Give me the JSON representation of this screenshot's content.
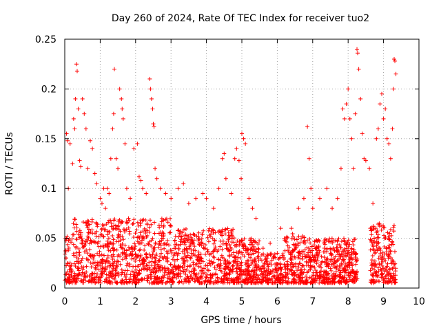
{
  "chart_data": {
    "type": "scatter",
    "title": "Day 260 of 2024, Rate Of TEC Index for receiver tuo2",
    "xlabel": "GPS time / hours",
    "ylabel": "ROTI / TECUs",
    "xlim": [
      0,
      10
    ],
    "ylim": [
      0,
      0.25
    ],
    "x_ticks": [
      0,
      1,
      2,
      3,
      4,
      5,
      6,
      7,
      8,
      9,
      10
    ],
    "x_tick_labels": [
      "0",
      "1",
      "2",
      "3",
      "4",
      "5",
      "6",
      "7",
      "8",
      "9",
      "10"
    ],
    "y_ticks": [
      0,
      0.05,
      0.1,
      0.15,
      0.2,
      0.25
    ],
    "y_tick_labels": [
      "0",
      "0.05",
      "0.1",
      "0.15",
      "0.2",
      "0.25"
    ],
    "grid": true,
    "marker": "+",
    "color": "#ff0000",
    "series": [
      {
        "name": "ROTI",
        "points": [
          [
            0.05,
            0.155
          ],
          [
            0.08,
            0.148
          ],
          [
            0.1,
            0.1
          ],
          [
            0.15,
            0.145
          ],
          [
            0.22,
            0.125
          ],
          [
            0.25,
            0.17
          ],
          [
            0.28,
            0.16
          ],
          [
            0.3,
            0.19
          ],
          [
            0.33,
            0.225
          ],
          [
            0.35,
            0.218
          ],
          [
            0.38,
            0.18
          ],
          [
            0.42,
            0.128
          ],
          [
            0.45,
            0.122
          ],
          [
            0.5,
            0.19
          ],
          [
            0.55,
            0.175
          ],
          [
            0.6,
            0.16
          ],
          [
            0.65,
            0.12
          ],
          [
            0.72,
            0.148
          ],
          [
            0.78,
            0.14
          ],
          [
            0.85,
            0.115
          ],
          [
            0.9,
            0.105
          ],
          [
            1.0,
            0.09
          ],
          [
            1.05,
            0.085
          ],
          [
            1.1,
            0.1
          ],
          [
            1.15,
            0.08
          ],
          [
            1.2,
            0.1
          ],
          [
            1.25,
            0.095
          ],
          [
            1.3,
            0.13
          ],
          [
            1.35,
            0.16
          ],
          [
            1.38,
            0.175
          ],
          [
            1.4,
            0.22
          ],
          [
            1.45,
            0.13
          ],
          [
            1.5,
            0.12
          ],
          [
            1.55,
            0.2
          ],
          [
            1.6,
            0.19
          ],
          [
            1.62,
            0.18
          ],
          [
            1.65,
            0.17
          ],
          [
            1.7,
            0.145
          ],
          [
            1.75,
            0.1
          ],
          [
            1.85,
            0.09
          ],
          [
            1.95,
            0.14
          ],
          [
            2.05,
            0.145
          ],
          [
            2.1,
            0.112
          ],
          [
            2.15,
            0.108
          ],
          [
            2.2,
            0.1
          ],
          [
            2.3,
            0.095
          ],
          [
            2.4,
            0.21
          ],
          [
            2.42,
            0.2
          ],
          [
            2.45,
            0.19
          ],
          [
            2.48,
            0.18
          ],
          [
            2.5,
            0.165
          ],
          [
            2.52,
            0.162
          ],
          [
            2.55,
            0.12
          ],
          [
            2.6,
            0.11
          ],
          [
            2.7,
            0.1
          ],
          [
            2.85,
            0.095
          ],
          [
            3.0,
            0.09
          ],
          [
            3.2,
            0.1
          ],
          [
            3.35,
            0.105
          ],
          [
            3.5,
            0.085
          ],
          [
            3.7,
            0.09
          ],
          [
            3.9,
            0.095
          ],
          [
            4.0,
            0.09
          ],
          [
            4.2,
            0.08
          ],
          [
            4.35,
            0.1
          ],
          [
            4.45,
            0.13
          ],
          [
            4.5,
            0.135
          ],
          [
            4.55,
            0.11
          ],
          [
            4.7,
            0.095
          ],
          [
            4.8,
            0.13
          ],
          [
            4.85,
            0.14
          ],
          [
            4.92,
            0.128
          ],
          [
            4.98,
            0.11
          ],
          [
            5.0,
            0.155
          ],
          [
            5.05,
            0.15
          ],
          [
            5.1,
            0.145
          ],
          [
            5.2,
            0.09
          ],
          [
            5.3,
            0.08
          ],
          [
            5.4,
            0.07
          ],
          [
            5.6,
            0.04
          ],
          [
            5.8,
            0.045
          ],
          [
            6.0,
            0.035
          ],
          [
            6.1,
            0.06
          ],
          [
            6.2,
            0.05
          ],
          [
            6.4,
            0.06
          ],
          [
            6.6,
            0.08
          ],
          [
            6.75,
            0.09
          ],
          [
            6.85,
            0.162
          ],
          [
            6.9,
            0.13
          ],
          [
            6.95,
            0.1
          ],
          [
            7.0,
            0.08
          ],
          [
            7.2,
            0.09
          ],
          [
            7.4,
            0.1
          ],
          [
            7.55,
            0.08
          ],
          [
            7.7,
            0.09
          ],
          [
            7.8,
            0.12
          ],
          [
            7.85,
            0.18
          ],
          [
            7.9,
            0.17
          ],
          [
            7.95,
            0.185
          ],
          [
            8.0,
            0.2
          ],
          [
            8.05,
            0.17
          ],
          [
            8.1,
            0.15
          ],
          [
            8.15,
            0.12
          ],
          [
            8.2,
            0.175
          ],
          [
            8.25,
            0.24
          ],
          [
            8.27,
            0.236
          ],
          [
            8.3,
            0.22
          ],
          [
            8.35,
            0.19
          ],
          [
            8.4,
            0.155
          ],
          [
            8.45,
            0.13
          ],
          [
            8.5,
            0.128
          ],
          [
            8.6,
            0.12
          ],
          [
            8.7,
            0.085
          ],
          [
            8.8,
            0.15
          ],
          [
            8.85,
            0.16
          ],
          [
            8.9,
            0.185
          ],
          [
            8.95,
            0.195
          ],
          [
            9.0,
            0.17
          ],
          [
            9.05,
            0.18
          ],
          [
            9.1,
            0.15
          ],
          [
            9.15,
            0.145
          ],
          [
            9.2,
            0.13
          ],
          [
            9.25,
            0.16
          ],
          [
            9.28,
            0.2
          ],
          [
            9.3,
            0.23
          ],
          [
            9.32,
            0.228
          ],
          [
            9.35,
            0.215
          ]
        ]
      }
    ]
  }
}
